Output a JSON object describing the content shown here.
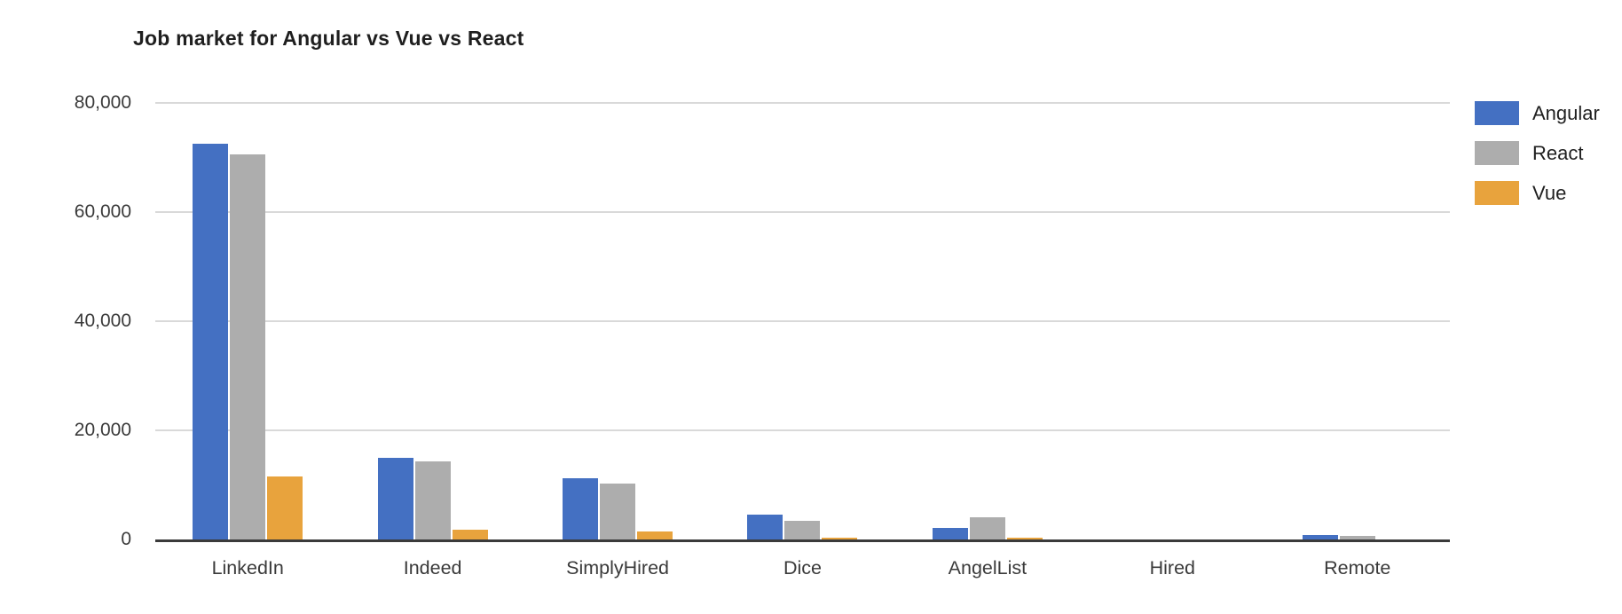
{
  "chart_data": {
    "type": "bar",
    "title": "Job market for Angular vs Vue vs React",
    "categories": [
      "LinkedIn",
      "Indeed",
      "SimplyHired",
      "Dice",
      "AngelList",
      "Hired",
      "Remote"
    ],
    "series": [
      {
        "name": "Angular",
        "color": "#4470C2",
        "values": [
          72500,
          15000,
          11200,
          4600,
          2100,
          0,
          800
        ]
      },
      {
        "name": "React",
        "color": "#ADADAD",
        "values": [
          70500,
          14300,
          10200,
          3400,
          4000,
          0,
          700
        ]
      },
      {
        "name": "Vue",
        "color": "#E8A33D",
        "values": [
          11500,
          1800,
          1500,
          400,
          300,
          0,
          0
        ]
      }
    ],
    "xlabel": "",
    "ylabel": "",
    "ylim": [
      0,
      80000
    ],
    "yticks": [
      {
        "value": 80000,
        "label": "80,000"
      },
      {
        "value": 60000,
        "label": "60,000"
      },
      {
        "value": 40000,
        "label": "40,000"
      },
      {
        "value": 20000,
        "label": "20,000"
      },
      {
        "value": 0,
        "label": "0"
      }
    ],
    "grid": "horizontal",
    "legend_position": "right"
  },
  "colors": {
    "background": "#FFFFFF",
    "gridline": "#D9D9D9",
    "axis_line": "#3A3A3A",
    "tick_text": "#3A3A3A",
    "title_text": "#1F1F1F"
  }
}
